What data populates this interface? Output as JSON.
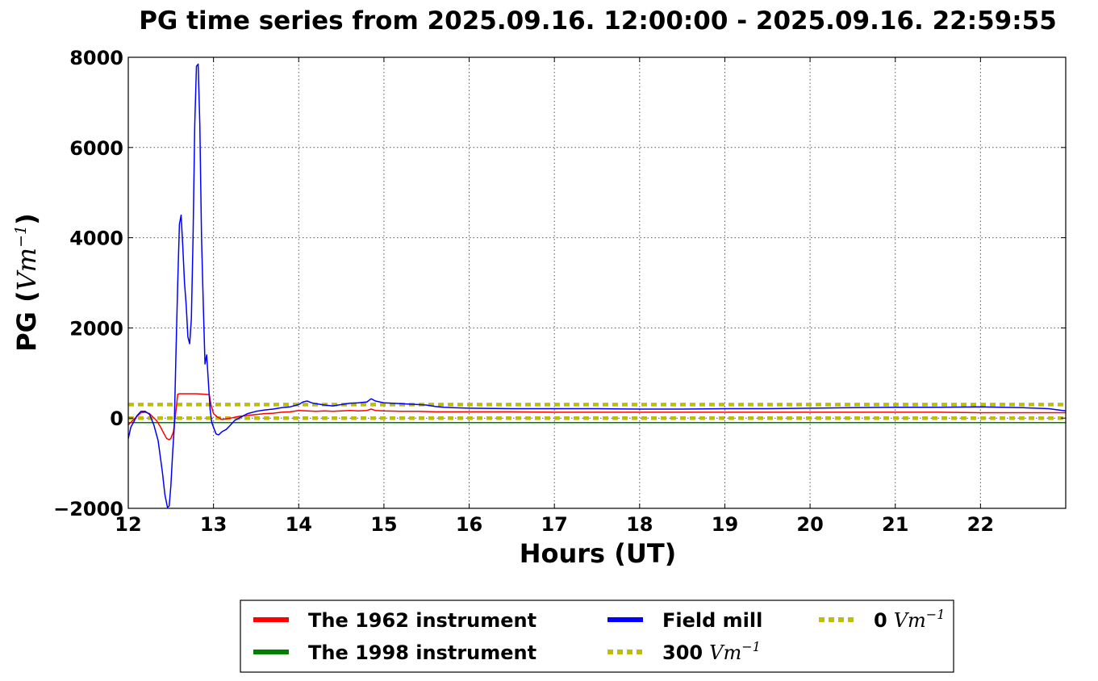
{
  "chart_data": {
    "type": "line",
    "title": "PG time series from 2025.09.16. 12:00:00 - 2025.09.16. 22:59:55",
    "xlabel": "Hours (UT)",
    "ylabel": "PG (",
    "ylabel_unit": "Vm",
    "ylabel_unit_exp": "−1",
    "ylabel_close": ")",
    "xlim": [
      12,
      23
    ],
    "ylim": [
      -2000,
      8000
    ],
    "xticks": [
      12,
      13,
      14,
      15,
      16,
      17,
      18,
      19,
      20,
      21,
      22
    ],
    "xtick_labels": [
      "12",
      "13",
      "14",
      "15",
      "16",
      "17",
      "18",
      "19",
      "20",
      "21",
      "22"
    ],
    "yticks": [
      -2000,
      0,
      2000,
      4000,
      6000,
      8000
    ],
    "ytick_labels": [
      "−2000",
      "0",
      "2000",
      "4000",
      "6000",
      "8000"
    ],
    "grid": true,
    "legend_position": "bottom-center",
    "series": [
      {
        "name": "The 1962 instrument",
        "color": "#ff0000",
        "style": "solid",
        "x": [
          12.0,
          12.08,
          12.15,
          12.2,
          12.25,
          12.33,
          12.38,
          12.42,
          12.45,
          12.48,
          12.5,
          12.53,
          12.55,
          12.58,
          12.6,
          12.7,
          12.8,
          12.9,
          12.95,
          12.97,
          13.0,
          13.05,
          13.1,
          13.2,
          13.3,
          13.4,
          13.5,
          13.6,
          13.7,
          13.8,
          13.9,
          14.0,
          14.1,
          14.2,
          14.3,
          14.4,
          14.5,
          14.6,
          14.7,
          14.8,
          14.85,
          14.9,
          15.0,
          15.2,
          15.4,
          15.6,
          15.8,
          16.0,
          16.5,
          17.0,
          17.5,
          18.0,
          18.5,
          19.0,
          19.5,
          20.0,
          20.5,
          21.0,
          21.5,
          22.0,
          22.5,
          23.0
        ],
        "y": [
          -150,
          0,
          120,
          130,
          100,
          -50,
          -200,
          -350,
          -450,
          -480,
          -450,
          -300,
          0,
          530,
          540,
          540,
          540,
          530,
          520,
          300,
          100,
          20,
          -30,
          0,
          40,
          60,
          80,
          100,
          110,
          130,
          140,
          170,
          160,
          150,
          160,
          150,
          160,
          170,
          160,
          170,
          200,
          170,
          160,
          150,
          150,
          140,
          140,
          140,
          140,
          130,
          130,
          130,
          130,
          130,
          130,
          130,
          130,
          130,
          130,
          120,
          120,
          120
        ]
      },
      {
        "name": "The 1998 instrument",
        "color": "#008000",
        "style": "solid",
        "x": [
          12.0,
          23.0
        ],
        "y": [
          -100,
          -100
        ]
      },
      {
        "name": "Field mill",
        "color": "#0000ff",
        "style": "solid",
        "x": [
          12.0,
          12.03,
          12.06,
          12.1,
          12.15,
          12.2,
          12.25,
          12.3,
          12.35,
          12.4,
          12.43,
          12.46,
          12.48,
          12.5,
          12.52,
          12.54,
          12.56,
          12.58,
          12.6,
          12.62,
          12.64,
          12.66,
          12.68,
          12.7,
          12.72,
          12.74,
          12.76,
          12.78,
          12.8,
          12.82,
          12.84,
          12.86,
          12.88,
          12.9,
          12.92,
          12.94,
          12.96,
          12.98,
          13.0,
          13.03,
          13.06,
          13.1,
          13.15,
          13.2,
          13.25,
          13.3,
          13.4,
          13.5,
          13.6,
          13.7,
          13.8,
          13.9,
          14.0,
          14.05,
          14.1,
          14.15,
          14.2,
          14.3,
          14.4,
          14.5,
          14.6,
          14.7,
          14.8,
          14.85,
          14.9,
          15.0,
          15.1,
          15.2,
          15.3,
          15.4,
          15.5,
          15.6,
          15.7,
          15.8,
          16.0,
          16.5,
          17.0,
          17.5,
          18.0,
          18.5,
          19.0,
          19.5,
          20.0,
          20.5,
          21.0,
          21.5,
          22.0,
          22.5,
          22.8,
          23.0
        ],
        "y": [
          -450,
          -200,
          -100,
          50,
          150,
          150,
          80,
          -150,
          -500,
          -1200,
          -1700,
          -1980,
          -1950,
          -1500,
          -800,
          -200,
          1500,
          3000,
          4300,
          4500,
          3800,
          3000,
          2500,
          1800,
          1650,
          2200,
          4000,
          6500,
          7800,
          7850,
          6500,
          4000,
          2500,
          1200,
          1400,
          800,
          200,
          -100,
          -200,
          -350,
          -370,
          -300,
          -250,
          -150,
          -50,
          0,
          100,
          150,
          180,
          200,
          230,
          250,
          300,
          360,
          380,
          340,
          320,
          290,
          270,
          300,
          330,
          340,
          360,
          430,
          380,
          340,
          330,
          320,
          310,
          300,
          290,
          260,
          240,
          230,
          220,
          210,
          210,
          210,
          200,
          200,
          210,
          210,
          220,
          230,
          240,
          240,
          250,
          230,
          210,
          160
        ]
      },
      {
        "name": "300",
        "name_unit": "Vm",
        "name_unit_exp": "−1",
        "color": "#bfbf00",
        "style": "dashed",
        "x": [
          12.0,
          23.0
        ],
        "y": [
          300,
          300
        ]
      },
      {
        "name": "0",
        "name_unit": "Vm",
        "name_unit_exp": "−1",
        "color": "#bfbf00",
        "style": "dashed",
        "x": [
          12.0,
          23.0
        ],
        "y": [
          0,
          0
        ]
      }
    ]
  }
}
